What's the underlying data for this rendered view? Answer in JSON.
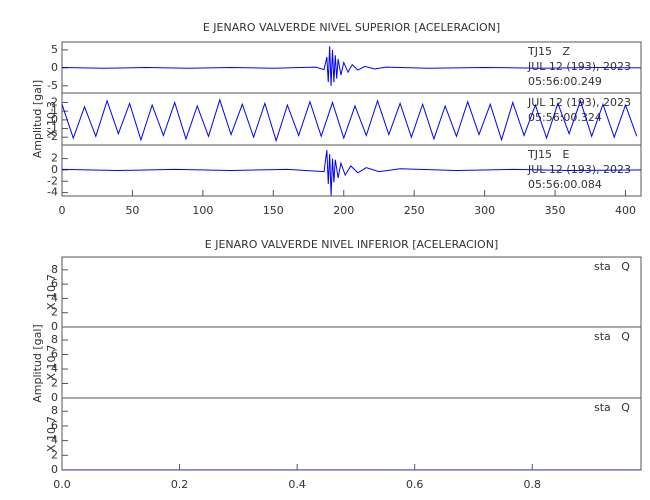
{
  "chart_data": [
    {
      "type": "line",
      "title": "E JENARO VALVERDE NIVEL SUPERIOR [ACELERACION]",
      "y_label": "Amplitud [gal]",
      "xlim": [
        0,
        411
      ],
      "xticks": [
        0,
        50,
        100,
        150,
        200,
        250,
        300,
        350,
        400
      ],
      "panels": [
        {
          "ylim": [
            -7,
            7.2
          ],
          "yticks": [
            -5,
            0,
            5
          ],
          "annotations": [
            "TJ15   Z",
            "JUL 12 (193), 2023",
            "05:56:00.249"
          ],
          "series": [
            {
              "color": "#0000ff",
              "x": [
                0,
                30,
                60,
                90,
                120,
                150,
                180,
                186,
                188,
                189,
                190,
                191,
                192,
                193,
                194,
                195,
                196,
                198,
                200,
                203,
                206,
                210,
                215,
                222,
                230,
                260,
                300,
                340,
                380,
                411
              ],
              "values": [
                0.1,
                -0.1,
                0.1,
                -0.1,
                0.1,
                -0.1,
                0.2,
                -0.5,
                3,
                -4,
                6,
                -5,
                5,
                -4,
                3.5,
                -3,
                2.5,
                -2,
                1.5,
                -1.2,
                0.9,
                -0.6,
                0.4,
                -0.3,
                0.2,
                -0.1,
                0.1,
                -0.1,
                0.1,
                0
              ]
            }
          ]
        },
        {
          "ylim": [
            -2.9,
            3.1
          ],
          "yticks": [
            -2,
            -1,
            0,
            1,
            2
          ],
          "scale_label": "X 10-3",
          "annotations": [
            "JUL 12 (193), 2023",
            "05:56:00.324"
          ],
          "series": [
            {
              "color": "#0000ff",
              "x": [
                0,
                8,
                16,
                24,
                32,
                40,
                48,
                56,
                64,
                72,
                80,
                88,
                96,
                104,
                112,
                120,
                128,
                136,
                144,
                152,
                160,
                168,
                176,
                184,
                192,
                200,
                208,
                216,
                224,
                232,
                240,
                248,
                256,
                264,
                272,
                280,
                288,
                296,
                304,
                312,
                320,
                328,
                336,
                344,
                352,
                360,
                368,
                376,
                384,
                392,
                400,
                408
              ],
              "values": [
                1.8,
                -2.1,
                1.5,
                -1.9,
                2.2,
                -1.6,
                1.9,
                -2.3,
                1.7,
                -1.8,
                2.0,
                -2.2,
                1.6,
                -1.9,
                2.3,
                -1.7,
                1.8,
                -2.0,
                1.9,
                -2.4,
                1.7,
                -1.8,
                2.1,
                -1.9,
                2.0,
                -2.1,
                1.6,
                -1.8,
                2.2,
                -1.7,
                1.9,
                -2.0,
                1.8,
                -2.2,
                1.6,
                -1.9,
                2.1,
                -1.7,
                1.8,
                -2.3,
                2.0,
                -1.8,
                1.7,
                -2.1,
                1.9,
                -1.6,
                2.2,
                -1.9,
                1.8,
                -2.0,
                1.7,
                -1.9
              ]
            }
          ]
        },
        {
          "ylim": [
            -4.6,
            4.4
          ],
          "yticks": [
            -4,
            -2,
            0,
            2
          ],
          "annotations": [
            "TJ15   E",
            "JUL 12 (193), 2023",
            "05:56:00.084"
          ],
          "series": [
            {
              "color": "#0000ff",
              "x": [
                0,
                40,
                80,
                120,
                160,
                186,
                188,
                189,
                190,
                191,
                192,
                193,
                194,
                196,
                198,
                201,
                205,
                210,
                216,
                225,
                240,
                280,
                320,
                360,
                411
              ],
              "values": [
                0.1,
                -0.1,
                0.1,
                -0.1,
                0.1,
                -0.3,
                3.5,
                -2.5,
                2.8,
                -4.5,
                2,
                -2.2,
                1.8,
                -1.4,
                1.2,
                -0.9,
                0.7,
                -0.5,
                0.4,
                -0.3,
                0.2,
                -0.1,
                0.1,
                -0.1,
                0
              ]
            }
          ]
        }
      ]
    },
    {
      "type": "line",
      "title": "E JENARO VALVERDE NIVEL INFERIOR [ACELERACION]",
      "y_label": "Amplitud [gal]",
      "xlim": [
        0,
        0.985
      ],
      "xticks": [
        {
          "value": 0,
          "label": "0.0"
        },
        0.2,
        0.4,
        0.6,
        0.8
      ],
      "panels": [
        {
          "ylim": [
            0,
            9.8
          ],
          "yticks": [
            0,
            2,
            4,
            6,
            8
          ],
          "scale_label": "X 10-7",
          "annotations": [
            "sta   Q"
          ],
          "series": [
            {
              "color": "#0000ff",
              "x": [
                0,
                0.985
              ],
              "values": [
                0,
                0
              ]
            }
          ]
        },
        {
          "ylim": [
            0,
            9.8
          ],
          "yticks": [
            0,
            2,
            4,
            6,
            8
          ],
          "scale_label": "X 10-7",
          "annotations": [
            "sta   Q"
          ],
          "series": [
            {
              "color": "#0000ff",
              "x": [
                0,
                0.985
              ],
              "values": [
                0,
                0
              ]
            }
          ]
        },
        {
          "ylim": [
            0,
            9.8
          ],
          "yticks": [
            0,
            2,
            4,
            6,
            8
          ],
          "scale_label": "X 10-7",
          "annotations": [
            "sta   Q"
          ],
          "series": [
            {
              "color": "#0000ff",
              "x": [
                0,
                0.985
              ],
              "values": [
                0,
                0
              ]
            }
          ]
        }
      ]
    }
  ]
}
